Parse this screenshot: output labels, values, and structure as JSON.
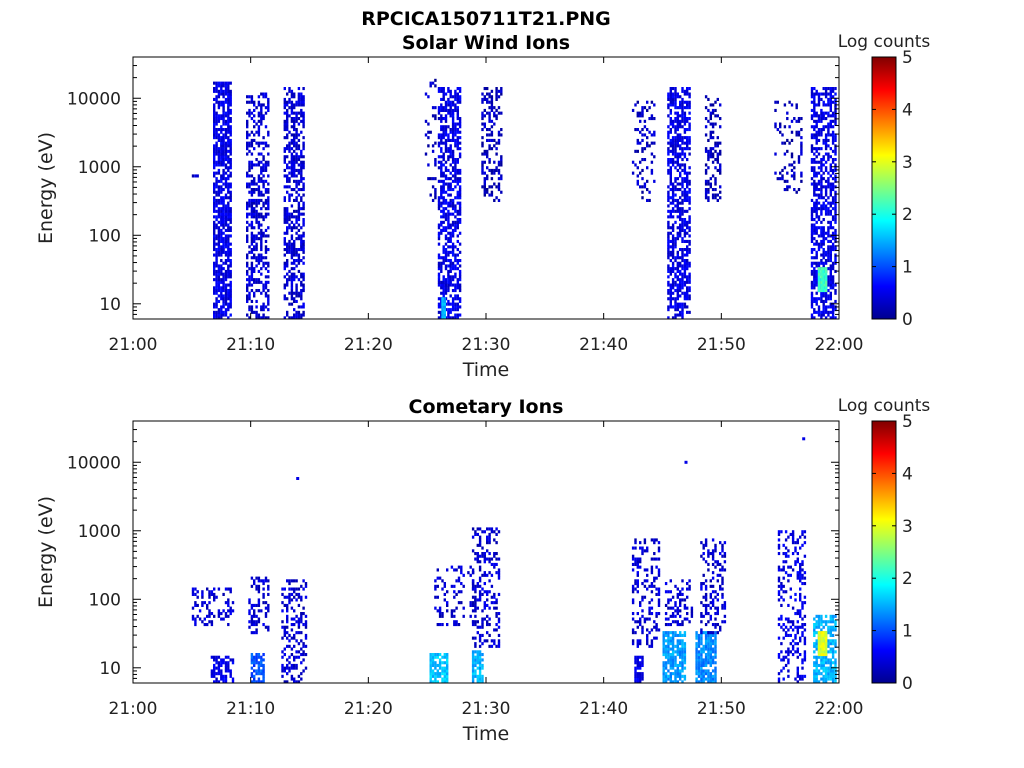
{
  "figure": {
    "filename_title": "RPCICA150711T21.PNG"
  },
  "chart_data": [
    {
      "type": "heatmap",
      "title": "Solar Wind Ions",
      "xlabel": "Time",
      "ylabel": "Energy (eV)",
      "x_ticks": [
        "21:00",
        "21:10",
        "21:20",
        "21:30",
        "21:40",
        "21:50",
        "22:00"
      ],
      "x_range_minutes": [
        0,
        60
      ],
      "y_scale": "log",
      "y_ticks": [
        "10",
        "100",
        "1000",
        "10000"
      ],
      "y_range_eV": [
        6,
        40000
      ],
      "colorbar": {
        "label": "Log counts",
        "ticks": [
          "0",
          "1",
          "2",
          "3",
          "4",
          "5"
        ],
        "range": [
          0,
          5
        ],
        "colormap": "jet"
      },
      "bursts": [
        {
          "t_start": 5.0,
          "t_end": 5.6,
          "e_min": 700,
          "e_max": 800,
          "level": 0.3,
          "density": 1.0
        },
        {
          "t_start": 6.8,
          "t_end": 8.4,
          "e_min": 6,
          "e_max": 18000,
          "level": 0.5,
          "density": 0.75
        },
        {
          "t_start": 9.6,
          "t_end": 11.5,
          "e_min": 6,
          "e_max": 12000,
          "level": 0.4,
          "density": 0.45
        },
        {
          "t_start": 12.8,
          "t_end": 14.6,
          "e_min": 6,
          "e_max": 15000,
          "level": 0.4,
          "density": 0.55
        },
        {
          "t_start": 24.8,
          "t_end": 25.8,
          "e_min": 300,
          "e_max": 20000,
          "level": 0.3,
          "density": 0.15
        },
        {
          "t_start": 25.9,
          "t_end": 27.9,
          "e_min": 6,
          "e_max": 15000,
          "level": 0.5,
          "density": 0.6
        },
        {
          "t_start": 26.2,
          "t_end": 26.6,
          "e_min": 6,
          "e_max": 12,
          "level": 1.5,
          "density": 1.0
        },
        {
          "t_start": 29.6,
          "t_end": 31.4,
          "e_min": 300,
          "e_max": 15000,
          "level": 0.3,
          "density": 0.35
        },
        {
          "t_start": 42.4,
          "t_end": 44.4,
          "e_min": 300,
          "e_max": 9000,
          "level": 0.3,
          "density": 0.2
        },
        {
          "t_start": 45.4,
          "t_end": 47.4,
          "e_min": 6,
          "e_max": 15000,
          "level": 0.5,
          "density": 0.6
        },
        {
          "t_start": 48.6,
          "t_end": 50.0,
          "e_min": 300,
          "e_max": 12000,
          "level": 0.3,
          "density": 0.35
        },
        {
          "t_start": 54.5,
          "t_end": 56.8,
          "e_min": 400,
          "e_max": 9000,
          "level": 0.3,
          "density": 0.2
        },
        {
          "t_start": 57.6,
          "t_end": 59.8,
          "e_min": 6,
          "e_max": 15000,
          "level": 0.5,
          "density": 0.6
        },
        {
          "t_start": 58.2,
          "t_end": 58.9,
          "e_min": 15,
          "e_max": 35,
          "level": 2.2,
          "density": 1.0
        }
      ]
    },
    {
      "type": "heatmap",
      "title": "Cometary Ions",
      "xlabel": "Time",
      "ylabel": "Energy (eV)",
      "x_ticks": [
        "21:00",
        "21:10",
        "21:20",
        "21:30",
        "21:40",
        "21:50",
        "22:00"
      ],
      "x_range_minutes": [
        0,
        60
      ],
      "y_scale": "log",
      "y_ticks": [
        "10",
        "100",
        "1000",
        "10000"
      ],
      "y_range_eV": [
        6,
        40000
      ],
      "colorbar": {
        "label": "Log counts",
        "ticks": [
          "0",
          "1",
          "2",
          "3",
          "4",
          "5"
        ],
        "range": [
          0,
          5
        ],
        "colormap": "jet"
      },
      "bursts": [
        {
          "t_start": 5.0,
          "t_end": 8.6,
          "e_min": 40,
          "e_max": 150,
          "level": 0.4,
          "density": 0.3
        },
        {
          "t_start": 6.6,
          "t_end": 8.6,
          "e_min": 6,
          "e_max": 15,
          "level": 0.5,
          "density": 0.6
        },
        {
          "t_start": 9.8,
          "t_end": 11.6,
          "e_min": 30,
          "e_max": 220,
          "level": 0.4,
          "density": 0.3
        },
        {
          "t_start": 10.0,
          "t_end": 11.2,
          "e_min": 6,
          "e_max": 16,
          "level": 1.0,
          "density": 0.7
        },
        {
          "t_start": 12.6,
          "t_end": 14.8,
          "e_min": 6,
          "e_max": 200,
          "level": 0.4,
          "density": 0.35
        },
        {
          "t_start": 25.2,
          "t_end": 26.8,
          "e_min": 6,
          "e_max": 16,
          "level": 1.6,
          "density": 0.8
        },
        {
          "t_start": 25.6,
          "t_end": 29.2,
          "e_min": 40,
          "e_max": 300,
          "level": 0.4,
          "density": 0.25
        },
        {
          "t_start": 28.8,
          "t_end": 29.8,
          "e_min": 6,
          "e_max": 18,
          "level": 1.5,
          "density": 0.8
        },
        {
          "t_start": 28.8,
          "t_end": 31.2,
          "e_min": 20,
          "e_max": 1100,
          "level": 0.4,
          "density": 0.35
        },
        {
          "t_start": 42.4,
          "t_end": 44.8,
          "e_min": 20,
          "e_max": 800,
          "level": 0.4,
          "density": 0.3
        },
        {
          "t_start": 42.6,
          "t_end": 43.4,
          "e_min": 6,
          "e_max": 15,
          "level": 0.5,
          "density": 0.8
        },
        {
          "t_start": 45.0,
          "t_end": 47.0,
          "e_min": 6,
          "e_max": 35,
          "level": 1.4,
          "density": 0.8
        },
        {
          "t_start": 45.2,
          "t_end": 47.6,
          "e_min": 40,
          "e_max": 200,
          "level": 0.4,
          "density": 0.3
        },
        {
          "t_start": 47.8,
          "t_end": 49.6,
          "e_min": 6,
          "e_max": 35,
          "level": 1.3,
          "density": 0.8
        },
        {
          "t_start": 48.2,
          "t_end": 50.4,
          "e_min": 30,
          "e_max": 800,
          "level": 0.4,
          "density": 0.35
        },
        {
          "t_start": 54.8,
          "t_end": 57.2,
          "e_min": 6,
          "e_max": 1000,
          "level": 0.5,
          "density": 0.3
        },
        {
          "t_start": 57.8,
          "t_end": 59.8,
          "e_min": 6,
          "e_max": 60,
          "level": 1.5,
          "density": 0.7
        },
        {
          "t_start": 58.2,
          "t_end": 59.0,
          "e_min": 15,
          "e_max": 35,
          "level": 3.0,
          "density": 1.0
        }
      ],
      "points": [
        {
          "t": 14.0,
          "e": 5800,
          "level": 0.5
        },
        {
          "t": 47.0,
          "e": 10000,
          "level": 0.5
        },
        {
          "t": 57.0,
          "e": 22000,
          "level": 0.5
        }
      ]
    }
  ]
}
